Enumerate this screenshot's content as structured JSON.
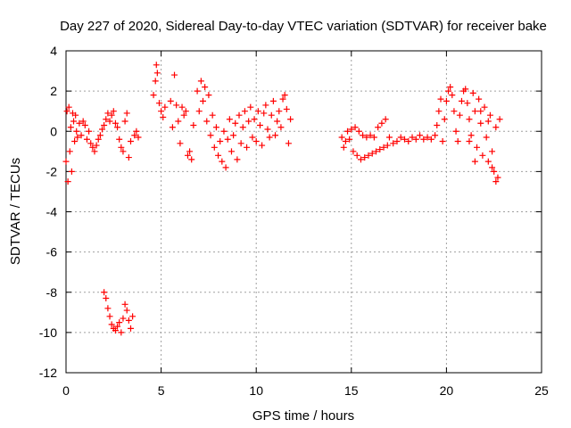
{
  "chart_data": {
    "type": "scatter",
    "title": "Day 227 of 2020, Sidereal Day-to-day VTEC variation (SDTVAR) for receiver bake",
    "xlabel": "GPS time / hours",
    "ylabel": "SDTVAR / TECUs",
    "xlim": [
      0,
      25
    ],
    "ylim": [
      -12,
      4
    ],
    "x_ticks": [
      0,
      5,
      10,
      15,
      20,
      25
    ],
    "y_ticks": [
      -12,
      -10,
      -8,
      -6,
      -4,
      -2,
      0,
      2,
      4
    ],
    "grid": true,
    "marker": "+",
    "color": "#ff0000",
    "series": [
      {
        "name": "SDTVAR",
        "points": [
          [
            0.0,
            -1.5
          ],
          [
            0.05,
            1.0
          ],
          [
            0.1,
            -2.5
          ],
          [
            0.15,
            1.2
          ],
          [
            0.2,
            -1.0
          ],
          [
            0.25,
            0.2
          ],
          [
            0.3,
            -2.0
          ],
          [
            0.35,
            0.9
          ],
          [
            0.4,
            0.5
          ],
          [
            0.45,
            -0.5
          ],
          [
            0.5,
            0.8
          ],
          [
            0.55,
            0.0
          ],
          [
            0.6,
            -0.3
          ],
          [
            0.7,
            0.4
          ],
          [
            0.8,
            -0.2
          ],
          [
            0.9,
            0.5
          ],
          [
            1.0,
            0.3
          ],
          [
            1.1,
            -0.4
          ],
          [
            1.2,
            0.0
          ],
          [
            1.3,
            -0.6
          ],
          [
            1.4,
            -0.8
          ],
          [
            1.5,
            -1.0
          ],
          [
            1.6,
            -0.7
          ],
          [
            1.7,
            -0.4
          ],
          [
            1.8,
            -0.2
          ],
          [
            1.9,
            0.1
          ],
          [
            2.0,
            0.3
          ],
          [
            2.1,
            0.6
          ],
          [
            2.2,
            0.9
          ],
          [
            2.3,
            0.5
          ],
          [
            2.4,
            0.8
          ],
          [
            2.5,
            1.0
          ],
          [
            2.6,
            0.4
          ],
          [
            2.7,
            0.2
          ],
          [
            2.8,
            -0.4
          ],
          [
            2.9,
            -0.8
          ],
          [
            3.0,
            -1.0
          ],
          [
            3.1,
            0.5
          ],
          [
            3.2,
            0.9
          ],
          [
            3.3,
            -1.3
          ],
          [
            3.4,
            -0.5
          ],
          [
            3.6,
            -0.2
          ],
          [
            3.7,
            0.0
          ],
          [
            3.8,
            -0.3
          ],
          [
            2.0,
            -8.0
          ],
          [
            2.1,
            -8.3
          ],
          [
            2.2,
            -8.8
          ],
          [
            2.3,
            -9.2
          ],
          [
            2.4,
            -9.6
          ],
          [
            2.5,
            -9.8
          ],
          [
            2.6,
            -9.9
          ],
          [
            2.7,
            -9.7
          ],
          [
            2.8,
            -9.5
          ],
          [
            2.9,
            -10.0
          ],
          [
            3.0,
            -9.3
          ],
          [
            3.1,
            -8.6
          ],
          [
            3.2,
            -8.9
          ],
          [
            3.3,
            -9.4
          ],
          [
            3.4,
            -9.8
          ],
          [
            3.5,
            -9.2
          ],
          [
            4.6,
            1.8
          ],
          [
            4.7,
            2.5
          ],
          [
            4.75,
            3.3
          ],
          [
            4.8,
            2.9
          ],
          [
            4.9,
            1.4
          ],
          [
            5.0,
            1.0
          ],
          [
            5.1,
            0.7
          ],
          [
            5.2,
            1.2
          ],
          [
            5.5,
            1.5
          ],
          [
            5.6,
            0.2
          ],
          [
            5.7,
            2.8
          ],
          [
            5.8,
            1.3
          ],
          [
            5.9,
            0.5
          ],
          [
            6.0,
            -0.6
          ],
          [
            6.1,
            1.2
          ],
          [
            6.2,
            0.8
          ],
          [
            6.3,
            1.0
          ],
          [
            6.4,
            -1.2
          ],
          [
            6.5,
            -1.0
          ],
          [
            6.6,
            -1.4
          ],
          [
            6.7,
            0.3
          ],
          [
            6.9,
            2.0
          ],
          [
            7.0,
            1.0
          ],
          [
            7.1,
            2.5
          ],
          [
            7.2,
            1.5
          ],
          [
            7.3,
            2.2
          ],
          [
            7.4,
            0.5
          ],
          [
            7.5,
            1.8
          ],
          [
            7.6,
            -0.2
          ],
          [
            7.7,
            0.8
          ],
          [
            7.8,
            -0.8
          ],
          [
            7.9,
            0.2
          ],
          [
            8.0,
            -1.2
          ],
          [
            8.1,
            -0.5
          ],
          [
            8.2,
            -1.5
          ],
          [
            8.3,
            0.0
          ],
          [
            8.4,
            -1.8
          ],
          [
            8.5,
            -0.4
          ],
          [
            8.6,
            0.6
          ],
          [
            8.7,
            -1.0
          ],
          [
            8.8,
            -0.2
          ],
          [
            8.9,
            0.4
          ],
          [
            9.0,
            -1.4
          ],
          [
            9.1,
            0.8
          ],
          [
            9.2,
            -0.6
          ],
          [
            9.3,
            0.2
          ],
          [
            9.4,
            1.0
          ],
          [
            9.5,
            -0.8
          ],
          [
            9.6,
            0.5
          ],
          [
            9.7,
            1.2
          ],
          [
            9.8,
            -0.3
          ],
          [
            9.9,
            0.6
          ],
          [
            10.0,
            -0.5
          ],
          [
            10.1,
            1.0
          ],
          [
            10.2,
            0.3
          ],
          [
            10.3,
            -0.7
          ],
          [
            10.4,
            0.9
          ],
          [
            10.5,
            1.3
          ],
          [
            10.6,
            0.1
          ],
          [
            10.7,
            -0.3
          ],
          [
            10.8,
            0.8
          ],
          [
            10.9,
            1.5
          ],
          [
            11.0,
            -0.2
          ],
          [
            11.1,
            0.5
          ],
          [
            11.2,
            1.0
          ],
          [
            11.3,
            0.2
          ],
          [
            11.4,
            1.6
          ],
          [
            11.5,
            1.8
          ],
          [
            11.6,
            1.1
          ],
          [
            11.7,
            -0.6
          ],
          [
            11.8,
            0.6
          ],
          [
            14.5,
            -0.3
          ],
          [
            14.6,
            -0.8
          ],
          [
            14.7,
            -0.5
          ],
          [
            14.8,
            0.0
          ],
          [
            14.9,
            -0.4
          ],
          [
            15.0,
            0.1
          ],
          [
            15.1,
            -1.0
          ],
          [
            15.2,
            0.2
          ],
          [
            15.3,
            -1.2
          ],
          [
            15.4,
            0.0
          ],
          [
            15.5,
            -1.4
          ],
          [
            15.6,
            -0.2
          ],
          [
            15.7,
            -1.3
          ],
          [
            15.8,
            -0.3
          ],
          [
            15.9,
            -1.2
          ],
          [
            16.0,
            -0.2
          ],
          [
            16.1,
            -1.1
          ],
          [
            16.2,
            -0.3
          ],
          [
            16.3,
            -1.0
          ],
          [
            16.4,
            0.2
          ],
          [
            16.5,
            -0.9
          ],
          [
            16.6,
            0.4
          ],
          [
            16.7,
            -0.8
          ],
          [
            16.8,
            0.6
          ],
          [
            16.9,
            -0.7
          ],
          [
            17.0,
            -0.3
          ],
          [
            17.2,
            -0.6
          ],
          [
            17.4,
            -0.5
          ],
          [
            17.6,
            -0.3
          ],
          [
            17.8,
            -0.4
          ],
          [
            18.0,
            -0.5
          ],
          [
            18.2,
            -0.3
          ],
          [
            18.4,
            -0.4
          ],
          [
            18.6,
            -0.2
          ],
          [
            18.8,
            -0.4
          ],
          [
            19.0,
            -0.3
          ],
          [
            19.2,
            -0.4
          ],
          [
            19.4,
            -0.2
          ],
          [
            19.5,
            0.3
          ],
          [
            19.6,
            1.0
          ],
          [
            19.7,
            1.6
          ],
          [
            19.8,
            -0.5
          ],
          [
            19.9,
            0.6
          ],
          [
            20.0,
            1.5
          ],
          [
            20.1,
            2.0
          ],
          [
            20.2,
            2.2
          ],
          [
            20.3,
            1.8
          ],
          [
            20.4,
            1.0
          ],
          [
            20.5,
            0.0
          ],
          [
            20.6,
            -0.5
          ],
          [
            20.7,
            0.8
          ],
          [
            20.8,
            1.5
          ],
          [
            20.9,
            2.0
          ],
          [
            21.0,
            2.1
          ],
          [
            21.1,
            1.4
          ],
          [
            21.2,
            0.6
          ],
          [
            21.3,
            -0.2
          ],
          [
            21.4,
            1.9
          ],
          [
            21.5,
            1.0
          ],
          [
            21.6,
            -0.8
          ],
          [
            21.7,
            1.6
          ],
          [
            21.8,
            0.4
          ],
          [
            21.9,
            -1.2
          ],
          [
            22.0,
            1.2
          ],
          [
            22.1,
            -0.3
          ],
          [
            22.2,
            -1.5
          ],
          [
            22.3,
            0.8
          ],
          [
            22.4,
            -1.0
          ],
          [
            22.5,
            -2.0
          ],
          [
            22.6,
            0.2
          ],
          [
            22.7,
            -2.3
          ],
          [
            22.8,
            0.6
          ],
          [
            22.6,
            -2.5
          ],
          [
            22.4,
            -1.8
          ],
          [
            22.2,
            0.5
          ],
          [
            21.8,
            1.0
          ],
          [
            21.5,
            -1.5
          ],
          [
            21.2,
            -0.5
          ]
        ]
      }
    ]
  }
}
